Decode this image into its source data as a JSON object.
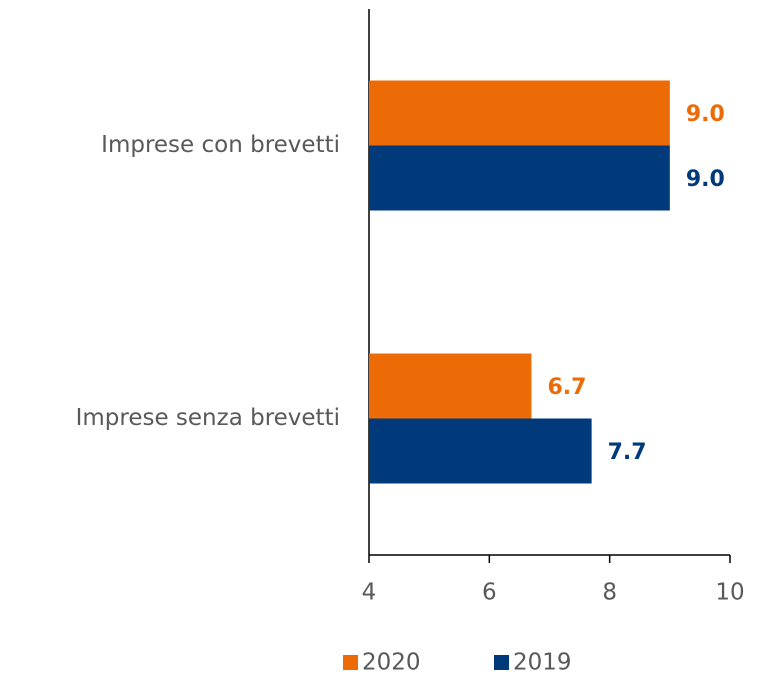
{
  "chart_data": {
    "type": "hbar",
    "categories": [
      "Imprese con brevetti",
      "Imprese senza brevetti"
    ],
    "series": [
      {
        "name": "2020",
        "color": "#ed6b06",
        "values": [
          9.0,
          6.7
        ],
        "value_labels": [
          "9.0",
          "6.7"
        ]
      },
      {
        "name": "2019",
        "color": "#003a7a",
        "values": [
          9.0,
          7.7
        ],
        "value_labels": [
          "9.0",
          "7.7"
        ]
      }
    ],
    "xlim": [
      4,
      10
    ],
    "xticks": [
      4,
      6,
      8,
      10
    ],
    "legend": "bottom"
  }
}
